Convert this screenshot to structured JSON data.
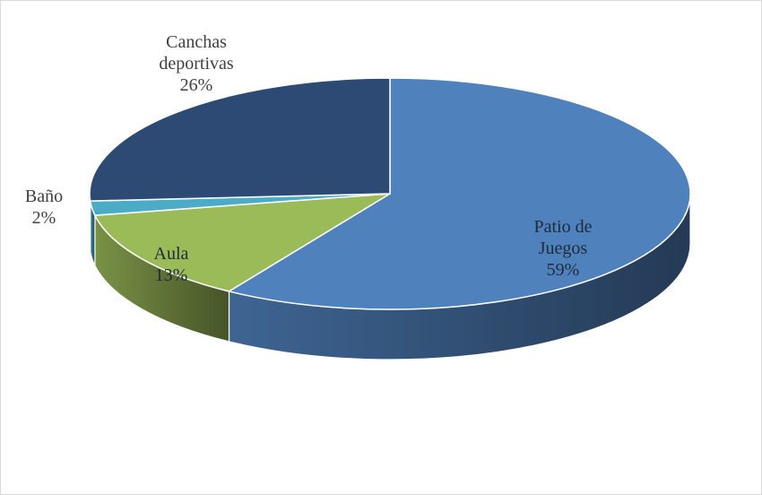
{
  "chart_data": {
    "type": "pie",
    "categories": [
      "Patio de Juegos",
      "Aula",
      "Baño",
      "Canchas deportivas"
    ],
    "values": [
      59,
      13,
      2,
      26
    ],
    "value_labels": [
      "59%",
      "13%",
      "2%",
      "26%"
    ],
    "colors": [
      "#4f81bd",
      "#9bbb59",
      "#4bacc6",
      "#2c4a74"
    ]
  }
}
